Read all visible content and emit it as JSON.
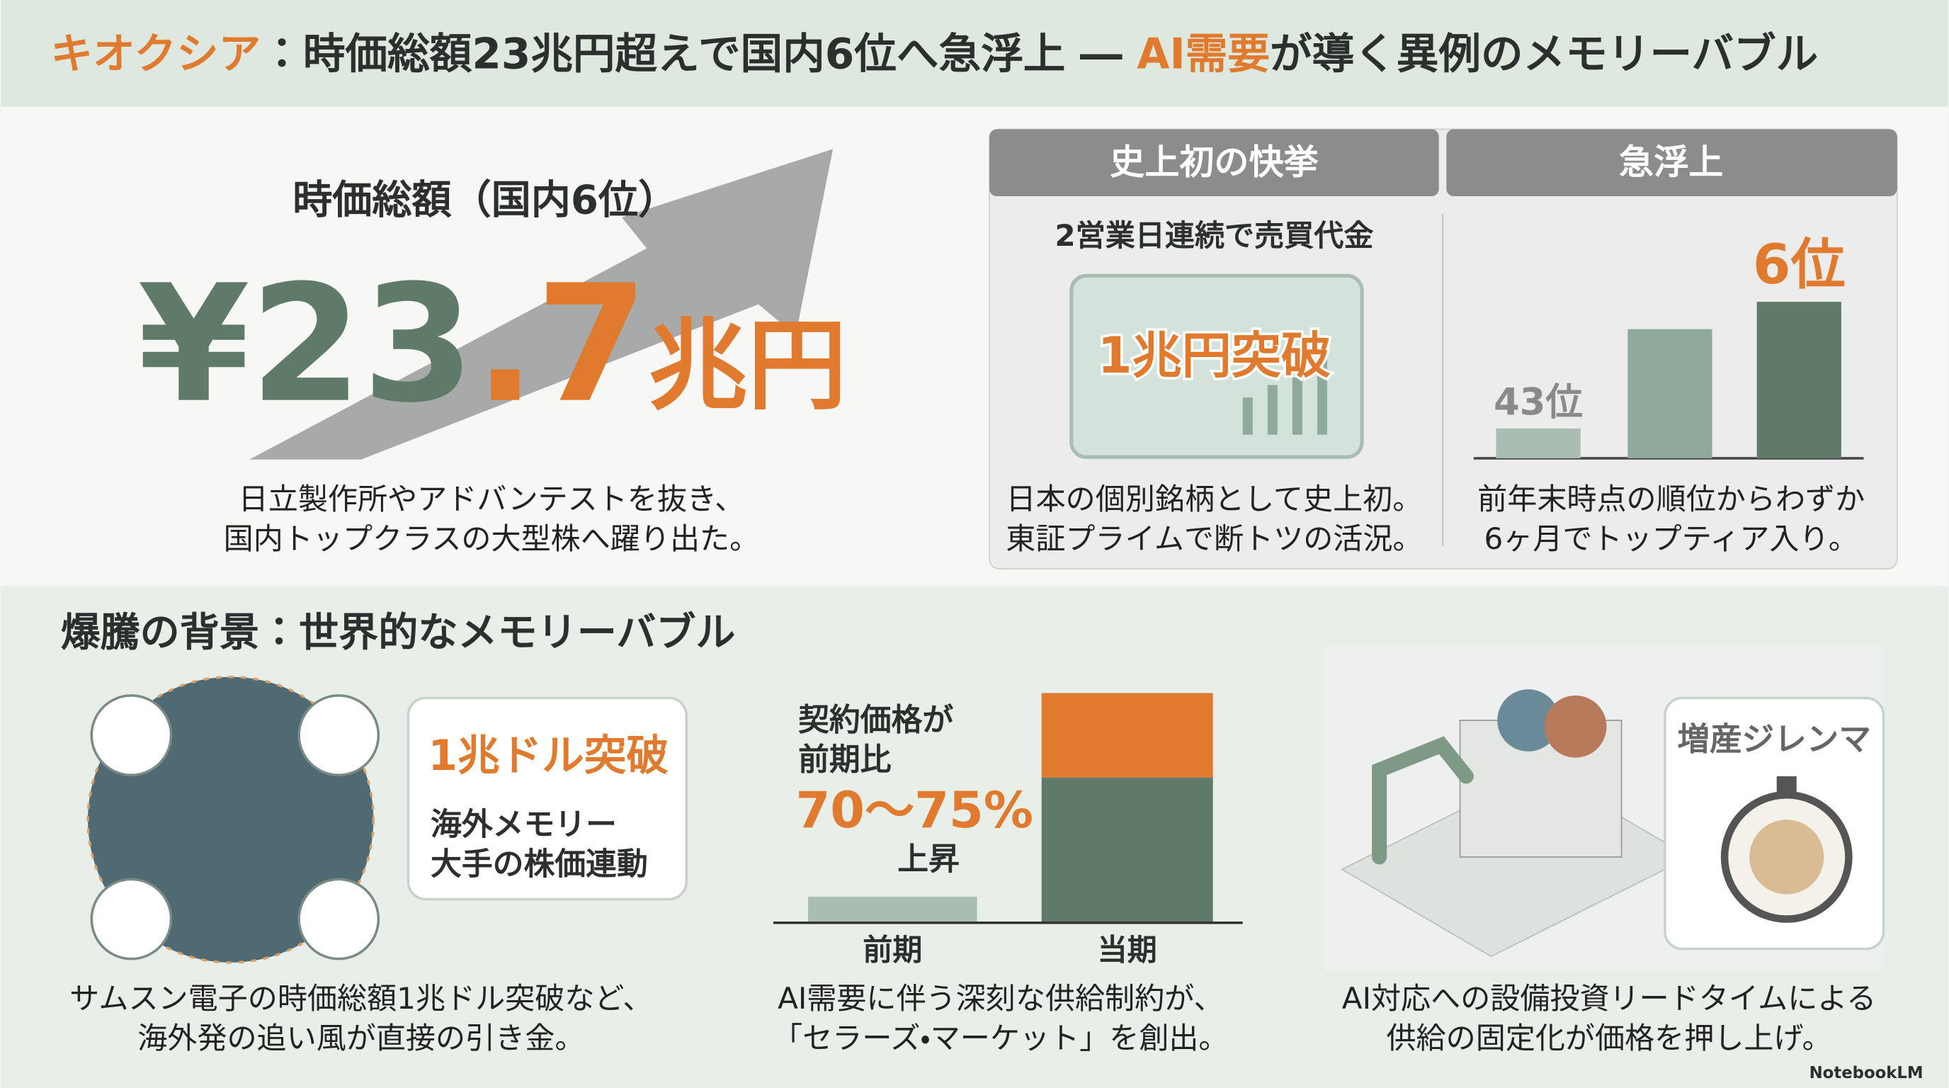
{
  "header": {
    "title": {
      "brand": "キオクシア",
      "part1": "：時価総額23兆円超えで国内6位へ急浮上 ― ",
      "highlight": "AI需要",
      "part2": "が導く異例のメモリーバブル"
    }
  },
  "hero": {
    "label": "時価総額（国内6位）",
    "value_main": "¥23",
    "value_decimal": ".7",
    "value_unit": "兆円",
    "description": [
      "日立製作所やアドバンテストを抜き、",
      "国内トップクラスの大型株へ躍り出た。"
    ]
  },
  "panels": [
    {
      "header": "史上初の快挙",
      "subtitle": "2営業日連続で売買代金",
      "highlight": "1兆円突破",
      "description": [
        "日本の個別銘柄として史上初。",
        "東証プライムで断トツの活況。"
      ]
    },
    {
      "header": "急浮上",
      "rank_before": "43位",
      "rank_after": "6位",
      "description": [
        "前年末時点の順位からわずか",
        "6ヶ月でトップティア入り。"
      ]
    }
  ],
  "section": {
    "title": "爆騰の背景：世界的なメモリーバブル",
    "columns": [
      {
        "callout_title": "1兆ドル突破",
        "callout_lines": [
          "海外メモリー",
          "大手の株価連動"
        ],
        "caption": [
          "サムスン電子の時価総額1兆ドル突破など、",
          "海外発の追い風が直接の引き金。"
        ]
      },
      {
        "lines": [
          "契約価格が",
          "前期比"
        ],
        "highlight": "70〜75%",
        "after": "上昇",
        "categories": [
          "前期",
          "当期"
        ],
        "caption": [
          "AI需要に伴う深刻な供給制約が、",
          "「セラーズ・マーケット」を創出。"
        ]
      },
      {
        "callout_title": "増産ジレンマ",
        "caption": [
          "AI対応への設備投資リードタイムによる",
          "供給の固定化が価格を押し上げ。"
        ]
      }
    ]
  },
  "footer": {
    "brand": "NotebookLM"
  }
}
